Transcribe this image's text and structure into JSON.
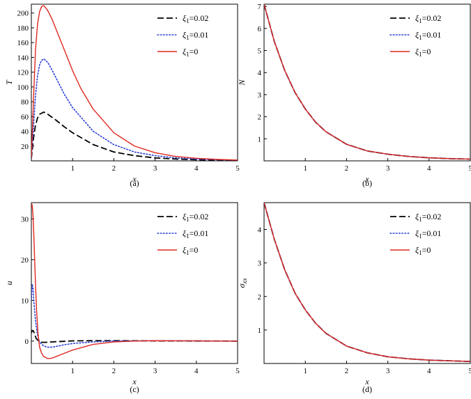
{
  "figure": {
    "colors": {
      "series_0": "#000000",
      "series_1": "#2a3fd6",
      "series_2": "#e0281e"
    },
    "legend_entries": [
      {
        "symbol": "ξ",
        "sub": "1",
        "value": "=0.02",
        "style": "dash"
      },
      {
        "symbol": "ξ",
        "sub": "1",
        "value": "=0.01",
        "style": "dot"
      },
      {
        "symbol": "ξ",
        "sub": "1",
        "value": "=0",
        "style": "solid"
      }
    ]
  },
  "chart_data": [
    {
      "id": "a",
      "type": "line",
      "caption": "(a)",
      "xlabel": "x",
      "ylabel": "T",
      "ylabel_sub": "",
      "xlim": [
        0,
        5
      ],
      "ylim": [
        0,
        212
      ],
      "xticks": [
        1,
        2,
        3,
        4,
        5
      ],
      "yticks": [
        20,
        40,
        60,
        80,
        100,
        120,
        140,
        160,
        180,
        200
      ],
      "legend": "top-right",
      "series": [
        {
          "name": "ξ1=0.02",
          "style": "dash",
          "x": [
            0,
            0.05,
            0.1,
            0.15,
            0.2,
            0.3,
            0.4,
            0.6,
            0.8,
            1.0,
            1.5,
            2.0,
            2.5,
            3.0,
            3.5,
            4.0,
            4.5,
            5.0
          ],
          "y": [
            3,
            30,
            48,
            58,
            63,
            66,
            63,
            55,
            46,
            38,
            22,
            12,
            7,
            4,
            2.5,
            1.5,
            1,
            0.5
          ]
        },
        {
          "name": "ξ1=0.01",
          "style": "dot",
          "x": [
            0,
            0.05,
            0.1,
            0.15,
            0.2,
            0.25,
            0.3,
            0.4,
            0.5,
            0.6,
            0.8,
            1.0,
            1.5,
            2.0,
            2.5,
            3.0,
            3.5,
            4.0,
            4.5,
            5.0
          ],
          "y": [
            3,
            45,
            88,
            115,
            130,
            136,
            138,
            133,
            123,
            112,
            90,
            72,
            40,
            22,
            12,
            7,
            4,
            2.5,
            1.5,
            1
          ]
        },
        {
          "name": "ξ1=0",
          "style": "solid",
          "x": [
            0,
            0.05,
            0.1,
            0.15,
            0.2,
            0.25,
            0.3,
            0.35,
            0.4,
            0.5,
            0.6,
            0.8,
            1.0,
            1.2,
            1.5,
            2.0,
            2.5,
            3.0,
            3.5,
            4.0,
            4.5,
            5.0
          ],
          "y": [
            3,
            80,
            150,
            185,
            202,
            209,
            210,
            207,
            203,
            192,
            178,
            150,
            122,
            98,
            70,
            38,
            20,
            11,
            6,
            3.5,
            2,
            1
          ]
        }
      ]
    },
    {
      "id": "b",
      "type": "line",
      "caption": "(b)",
      "xlabel": "x",
      "ylabel": "N",
      "ylabel_sub": "",
      "xlim": [
        0,
        5
      ],
      "ylim": [
        0,
        7.1
      ],
      "xticks": [
        1,
        2,
        3,
        4,
        5
      ],
      "yticks": [
        1,
        2,
        3,
        4,
        5,
        6,
        7
      ],
      "legend": "top-right",
      "series": [
        {
          "name": "ξ1=0.02",
          "style": "dash",
          "x": [
            0,
            0.25,
            0.5,
            0.75,
            1.0,
            1.25,
            1.5,
            2.0,
            2.5,
            3.0,
            3.5,
            4.0,
            4.5,
            5.0
          ],
          "y": [
            7.1,
            5.4,
            4.1,
            3.1,
            2.35,
            1.75,
            1.32,
            0.75,
            0.45,
            0.3,
            0.2,
            0.14,
            0.1,
            0.08
          ]
        },
        {
          "name": "ξ1=0.01",
          "style": "dot",
          "x": [
            0,
            0.25,
            0.5,
            0.75,
            1.0,
            1.25,
            1.5,
            2.0,
            2.5,
            3.0,
            3.5,
            4.0,
            4.5,
            5.0
          ],
          "y": [
            7.1,
            5.4,
            4.1,
            3.1,
            2.35,
            1.75,
            1.32,
            0.75,
            0.45,
            0.3,
            0.2,
            0.14,
            0.1,
            0.08
          ]
        },
        {
          "name": "ξ1=0",
          "style": "solid",
          "x": [
            0,
            0.25,
            0.5,
            0.75,
            1.0,
            1.25,
            1.5,
            2.0,
            2.5,
            3.0,
            3.5,
            4.0,
            4.5,
            5.0
          ],
          "y": [
            7.1,
            5.4,
            4.1,
            3.1,
            2.35,
            1.75,
            1.32,
            0.75,
            0.45,
            0.3,
            0.2,
            0.14,
            0.1,
            0.08
          ]
        }
      ]
    },
    {
      "id": "c",
      "type": "line",
      "caption": "(c)",
      "xlabel": "x",
      "ylabel": "u",
      "ylabel_sub": "",
      "xlim": [
        0,
        5
      ],
      "ylim": [
        -5.5,
        34
      ],
      "xticks": [
        1,
        2,
        3,
        4,
        5
      ],
      "yticks": [
        0,
        10,
        20,
        30
      ],
      "legend": "top-right",
      "series": [
        {
          "name": "ξ1=0.02",
          "style": "dash",
          "x": [
            0,
            0.02,
            0.05,
            0.08,
            0.12,
            0.18,
            0.25,
            0.35,
            0.5,
            0.7,
            1.0,
            1.5,
            2.0,
            3.0,
            5.0
          ],
          "y": [
            2,
            2.6,
            2.5,
            1.6,
            0.6,
            0.0,
            -0.3,
            -0.3,
            -0.2,
            -0.1,
            0.05,
            0.1,
            0.1,
            0.05,
            0.0
          ]
        },
        {
          "name": "ξ1=0.01",
          "style": "dot",
          "x": [
            0,
            0.02,
            0.04,
            0.06,
            0.1,
            0.15,
            0.2,
            0.3,
            0.4,
            0.5,
            0.6,
            0.8,
            1.0,
            1.5,
            2.0,
            3.0,
            5.0
          ],
          "y": [
            10,
            14,
            13,
            10,
            5,
            1.5,
            -0.3,
            -1.2,
            -1.5,
            -1.5,
            -1.3,
            -0.9,
            -0.6,
            -0.2,
            0.0,
            0.1,
            0.0
          ]
        },
        {
          "name": "ξ1=0",
          "style": "solid",
          "x": [
            0,
            0.02,
            0.04,
            0.06,
            0.08,
            0.1,
            0.13,
            0.16,
            0.2,
            0.25,
            0.3,
            0.4,
            0.5,
            0.6,
            0.8,
            1.0,
            1.5,
            2.0,
            2.5,
            3.0,
            5.0
          ],
          "y": [
            33,
            33.5,
            31,
            26,
            20,
            14,
            7,
            2,
            -1.5,
            -3,
            -3.8,
            -4.3,
            -4.2,
            -3.8,
            -3,
            -2.2,
            -0.8,
            -0.2,
            0.0,
            0.1,
            0.0
          ]
        }
      ]
    },
    {
      "id": "d",
      "type": "line",
      "caption": "(d)",
      "xlabel": "x",
      "ylabel": "σ",
      "ylabel_sub": "xx",
      "xlim": [
        0,
        5
      ],
      "ylim": [
        0,
        4.8
      ],
      "xticks": [
        1,
        2,
        3,
        4,
        5
      ],
      "yticks": [
        1,
        2,
        3,
        4
      ],
      "legend": "top-right",
      "series": [
        {
          "name": "ξ1=0.02",
          "style": "dash",
          "x": [
            0,
            0.25,
            0.5,
            0.75,
            1.0,
            1.25,
            1.5,
            2.0,
            2.5,
            3.0,
            3.5,
            4.0,
            4.5,
            5.0
          ],
          "y": [
            4.8,
            3.7,
            2.8,
            2.1,
            1.6,
            1.2,
            0.9,
            0.52,
            0.32,
            0.2,
            0.14,
            0.1,
            0.08,
            0.06
          ]
        },
        {
          "name": "ξ1=0.01",
          "style": "dot",
          "x": [
            0,
            0.25,
            0.5,
            0.75,
            1.0,
            1.25,
            1.5,
            2.0,
            2.5,
            3.0,
            3.5,
            4.0,
            4.5,
            5.0
          ],
          "y": [
            4.8,
            3.7,
            2.8,
            2.1,
            1.6,
            1.2,
            0.9,
            0.52,
            0.32,
            0.2,
            0.14,
            0.1,
            0.08,
            0.06
          ]
        },
        {
          "name": "ξ1=0",
          "style": "solid",
          "x": [
            0,
            0.25,
            0.5,
            0.75,
            1.0,
            1.25,
            1.5,
            2.0,
            2.5,
            3.0,
            3.5,
            4.0,
            4.5,
            5.0
          ],
          "y": [
            4.8,
            3.7,
            2.8,
            2.1,
            1.6,
            1.2,
            0.9,
            0.52,
            0.32,
            0.2,
            0.14,
            0.1,
            0.08,
            0.06
          ]
        }
      ]
    }
  ]
}
